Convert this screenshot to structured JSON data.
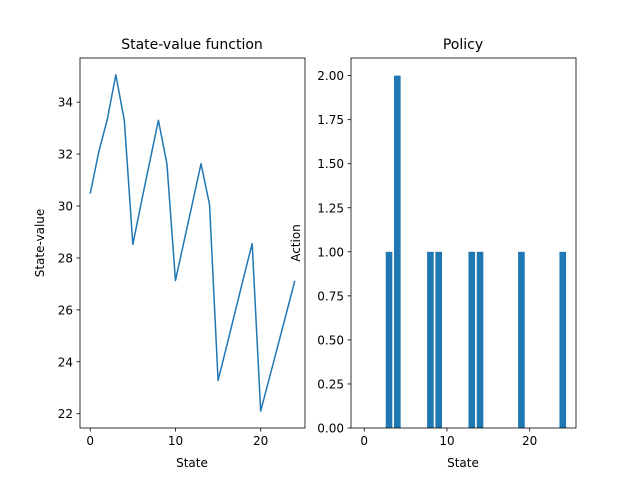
{
  "chart_data": [
    {
      "type": "line",
      "title": "State-value function",
      "xlabel": "State",
      "ylabel": "State-value",
      "x": [
        0,
        1,
        2,
        3,
        4,
        5,
        6,
        7,
        8,
        9,
        10,
        11,
        12,
        13,
        14,
        15,
        16,
        17,
        18,
        19,
        20,
        21,
        22,
        23,
        24
      ],
      "values": [
        30.48,
        32.08,
        33.33,
        35.05,
        33.3,
        28.52,
        30.15,
        31.73,
        33.3,
        31.62,
        27.13,
        28.63,
        30.12,
        31.63,
        30.05,
        23.28,
        24.59,
        25.92,
        27.25,
        28.55,
        22.1,
        23.35,
        24.6,
        25.85,
        27.12
      ],
      "xlim": [
        -1.2,
        25.2
      ],
      "ylim": [
        21.45,
        35.7
      ],
      "xticks": [
        0,
        10,
        20
      ],
      "yticks": [
        22,
        24,
        26,
        28,
        30,
        32,
        34
      ],
      "color": "#1f77b4"
    },
    {
      "type": "bar",
      "title": "Policy",
      "xlabel": "State",
      "ylabel": "Action",
      "x": [
        0,
        1,
        2,
        3,
        4,
        5,
        6,
        7,
        8,
        9,
        10,
        11,
        12,
        13,
        14,
        15,
        16,
        17,
        18,
        19,
        20,
        21,
        22,
        23,
        24
      ],
      "values": [
        0,
        0,
        0,
        1,
        2,
        0,
        0,
        0,
        1,
        1,
        0,
        0,
        0,
        1,
        1,
        0,
        0,
        0,
        0,
        1,
        0,
        0,
        0,
        0,
        1
      ],
      "xlim": [
        -1.6,
        25.6
      ],
      "ylim": [
        0,
        2.1
      ],
      "xticks": [
        0,
        10,
        20
      ],
      "yticks": [
        "0.00",
        "0.25",
        "0.50",
        "0.75",
        "1.00",
        "1.25",
        "1.50",
        "1.75",
        "2.00"
      ],
      "color": "#1f77b4"
    }
  ]
}
